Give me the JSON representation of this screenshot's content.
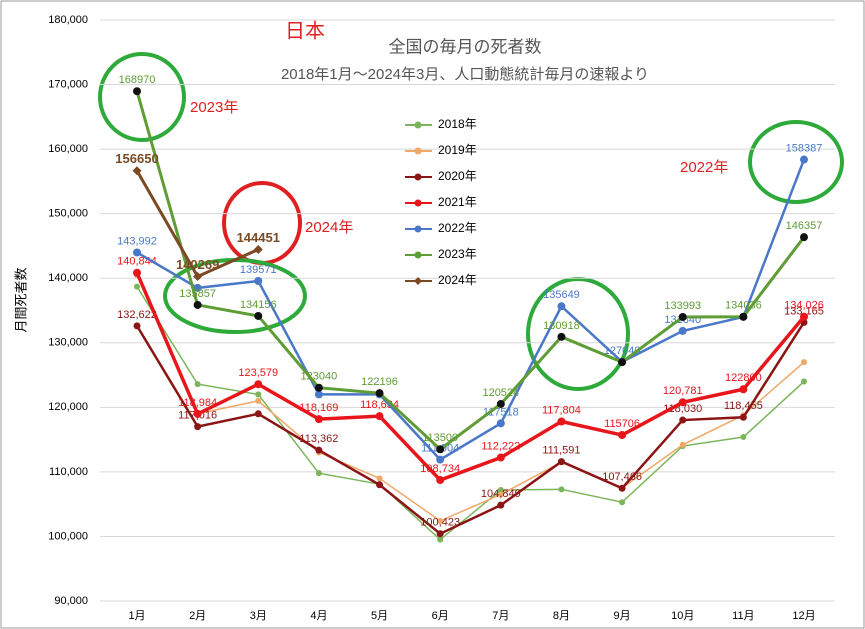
{
  "chart_data": {
    "type": "line",
    "title": "全国の毎月の死者数",
    "subtitle": "2018年1月～2024年3月、人口動態統計毎月の速報より",
    "y_label": "月間死者数",
    "annotations": [
      "日本",
      "2023年",
      "2024年",
      "2022年"
    ],
    "categories": [
      "1月",
      "2月",
      "3月",
      "4月",
      "5月",
      "6月",
      "7月",
      "8月",
      "9月",
      "10月",
      "11月",
      "12月"
    ],
    "ylim": [
      90000,
      180000
    ],
    "yticks": [
      {
        "value": 90000,
        "label": "90,000"
      },
      {
        "value": 100000,
        "label": "100,000"
      },
      {
        "value": 110000,
        "label": "110,000"
      },
      {
        "value": 120000,
        "label": "120,000"
      },
      {
        "value": 130000,
        "label": "130,000"
      },
      {
        "value": 140000,
        "label": "140,000"
      },
      {
        "value": 150000,
        "label": "150,000"
      },
      {
        "value": 160000,
        "label": "160,000"
      },
      {
        "value": 170000,
        "label": "170,000"
      },
      {
        "value": 180000,
        "label": "180,000"
      }
    ],
    "grid": true,
    "series": [
      {
        "name": "2018年",
        "color": "#7bb55a",
        "values": [
          138700,
          123600,
          122000,
          109800,
          108100,
          99500,
          107200,
          107300,
          105300,
          114000,
          115400,
          124000
        ]
      },
      {
        "name": "2019年",
        "color": "#f0a868",
        "values": [
          140500,
          119000,
          121000,
          113000,
          109000,
          102400,
          106500,
          111500,
          107500,
          114200,
          118800,
          127000
        ]
      },
      {
        "name": "2020年",
        "color": "#8c1414",
        "values": [
          132622,
          117016,
          119000,
          113362,
          108000,
          100423,
          104849,
          111591,
          107466,
          118030,
          118455,
          133165
        ],
        "value_labels": [
          "132,622",
          "117,016",
          null,
          "113,362",
          null,
          "100,423",
          "104,849",
          "111,591",
          "107,466",
          "118,030",
          "118,455",
          "133,165"
        ]
      },
      {
        "name": "2021年",
        "color": "#e8151b",
        "values": [
          140844,
          118984,
          123579,
          118169,
          118634,
          108734,
          112222,
          117804,
          115706,
          120781,
          122800,
          134026
        ],
        "value_labels": [
          "140,844",
          "118,984",
          "123,579",
          "118,169",
          "118,634",
          "108,734",
          "112,222",
          "117,804",
          "115706",
          "120,781",
          "122800",
          "134,026"
        ]
      },
      {
        "name": "2022年",
        "color": "#4a78c8",
        "values": [
          143992,
          138500,
          139571,
          122000,
          122000,
          111904,
          117518,
          135649,
          127040,
          131840,
          134000,
          158387
        ],
        "value_labels": [
          "143,992",
          null,
          "139571",
          null,
          null,
          "111,904",
          "117518",
          "135649",
          "127040",
          "131840",
          null,
          "158387"
        ]
      },
      {
        "name": "2023年",
        "color": "#5e9c34",
        "values": [
          168970,
          135857,
          134156,
          123040,
          122196,
          113500,
          120524,
          130918,
          127000,
          133993,
          134036,
          146357
        ],
        "value_labels": [
          "168970",
          "135857",
          "134156",
          "123040",
          "122196",
          "113500",
          "120524",
          "130918",
          null,
          "133993",
          "134036",
          "146357"
        ]
      },
      {
        "name": "2024年",
        "color": "#7b4a22",
        "values": [
          156650,
          140269,
          144451,
          null,
          null,
          null,
          null,
          null,
          null,
          null,
          null,
          null
        ],
        "value_labels": [
          "156650",
          "140269",
          "144451",
          null,
          null,
          null,
          null,
          null,
          null,
          null,
          null,
          null
        ]
      }
    ]
  }
}
